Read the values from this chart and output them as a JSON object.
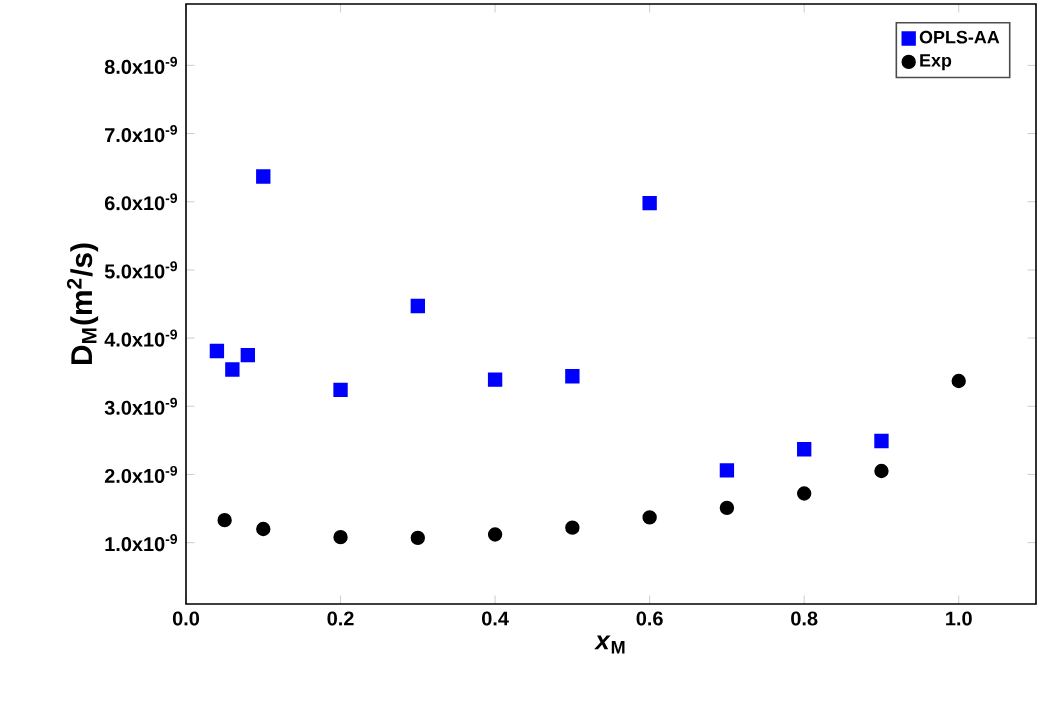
{
  "chart_data": {
    "type": "scatter",
    "xlabel": "*x*$_{M}$",
    "ylabel": "D$_{M}$(m$^{2}$/s)",
    "xlim": [
      0,
      1.1
    ],
    "ylim": [
      1e-10,
      8.9e-09
    ],
    "xticks": [
      {
        "value": 0,
        "label": "0.0"
      },
      0.2,
      0.4,
      0.6,
      0.8,
      {
        "value": 1,
        "label": "1.0"
      }
    ],
    "yticks": [
      {
        "value": 1e-09,
        "label": "1.0x10$^{-9}$"
      },
      {
        "value": 2e-09,
        "label": "2.0x10$^{-9}$"
      },
      {
        "value": 3e-09,
        "label": "3.0x10$^{-9}$"
      },
      {
        "value": 4e-09,
        "label": "4.0x10$^{-9}$"
      },
      {
        "value": 5e-09,
        "label": "5.0x10$^{-9}$"
      },
      {
        "value": 6e-09,
        "label": "6.0x10$^{-9}$"
      },
      {
        "value": 7e-09,
        "label": "7.0x10$^{-9}$"
      },
      {
        "value": 8e-09,
        "label": "8.0x10$^{-9}$"
      }
    ],
    "legend": "top right",
    "series": [
      {
        "name": "OPLS-AA",
        "color": "#0000ff",
        "marker": "square",
        "x": [
          0.04,
          0.06,
          0.08,
          0.1,
          0.2,
          0.3,
          0.4,
          0.5,
          0.6,
          0.7,
          0.8,
          0.9
        ],
        "values": [
          3.81e-09,
          3.54e-09,
          3.75e-09,
          6.37e-09,
          3.24e-09,
          4.47e-09,
          3.39e-09,
          3.44e-09,
          5.98e-09,
          2.06e-09,
          2.37e-09,
          2.49e-09
        ]
      },
      {
        "name": "Exp",
        "color": "#000000",
        "marker": "circle",
        "x": [
          0.05,
          0.1,
          0.2,
          0.3,
          0.4,
          0.5,
          0.6,
          0.7,
          0.8,
          0.9,
          1.0
        ],
        "values": [
          1.33e-09,
          1.2e-09,
          1.08e-09,
          1.07e-09,
          1.12e-09,
          1.22e-09,
          1.37e-09,
          1.51e-09,
          1.72e-09,
          2.05e-09,
          3.37e-09
        ]
      }
    ]
  }
}
